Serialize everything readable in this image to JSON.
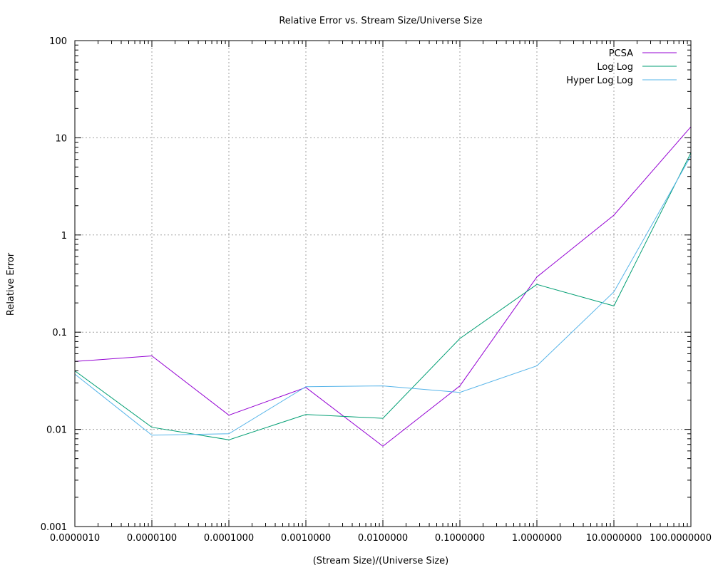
{
  "chart_data": {
    "type": "line",
    "title": "Relative Error vs. Stream Size/Universe Size",
    "xlabel": "(Stream Size)/(Universe Size)",
    "ylabel": "Relative Error",
    "x_scale": "log",
    "y_scale": "log",
    "xlim": [
      1e-06,
      100
    ],
    "ylim": [
      0.001,
      100
    ],
    "x_ticks": [
      1e-06,
      1e-05,
      0.0001,
      0.001,
      0.01,
      0.1,
      1,
      10,
      100
    ],
    "x_tick_labels": [
      "0.0000010",
      "0.0000100",
      "0.0001000",
      "0.0010000",
      "0.0100000",
      "0.1000000",
      "1.0000000",
      "10.0000000",
      "100.0000000"
    ],
    "y_ticks": [
      0.001,
      0.01,
      0.1,
      1,
      10,
      100
    ],
    "y_tick_labels": [
      "0.001",
      "0.01",
      "0.1",
      "1",
      "10",
      "100"
    ],
    "grid": true,
    "legend_position": "top-right",
    "x": [
      1e-06,
      1e-05,
      0.0001,
      0.001,
      0.01,
      0.1,
      1,
      10,
      100
    ],
    "series": [
      {
        "name": "PCSA",
        "color": "#9400d3",
        "values": [
          0.05,
          0.057,
          0.014,
          0.027,
          0.0067,
          0.028,
          0.37,
          1.6,
          13
        ]
      },
      {
        "name": "Log Log",
        "color": "#009e73",
        "values": [
          0.04,
          0.0105,
          0.0078,
          0.0142,
          0.013,
          0.086,
          0.31,
          0.186,
          7
        ]
      },
      {
        "name": "Hyper Log Log",
        "color": "#56b4e9",
        "values": [
          0.037,
          0.0087,
          0.009,
          0.0275,
          0.028,
          0.024,
          0.045,
          0.26,
          6.5
        ]
      }
    ]
  }
}
